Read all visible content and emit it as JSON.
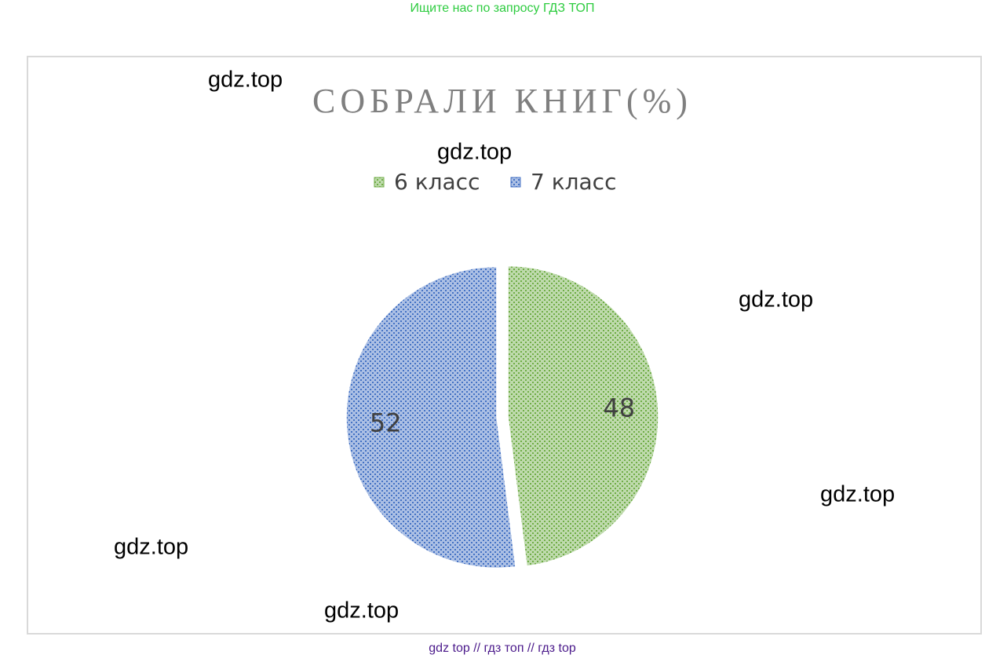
{
  "header": "Ищите нас по запросу ГДЗ ТОП",
  "watermarks": [
    "gdz.top",
    "gdz.top",
    "gdz.top",
    "gdz.top",
    "gdz.top",
    "gdz.top"
  ],
  "footer": "gdz top  //  гдз топ  //  гдз top",
  "chart_data": {
    "type": "pie",
    "title": "СОБРАЛИ КНИГ(%)",
    "categories": [
      "6 класс",
      "7 класс"
    ],
    "values": [
      48,
      52
    ],
    "colors": [
      "#70ad47",
      "#4472c4"
    ],
    "legend": "top"
  }
}
